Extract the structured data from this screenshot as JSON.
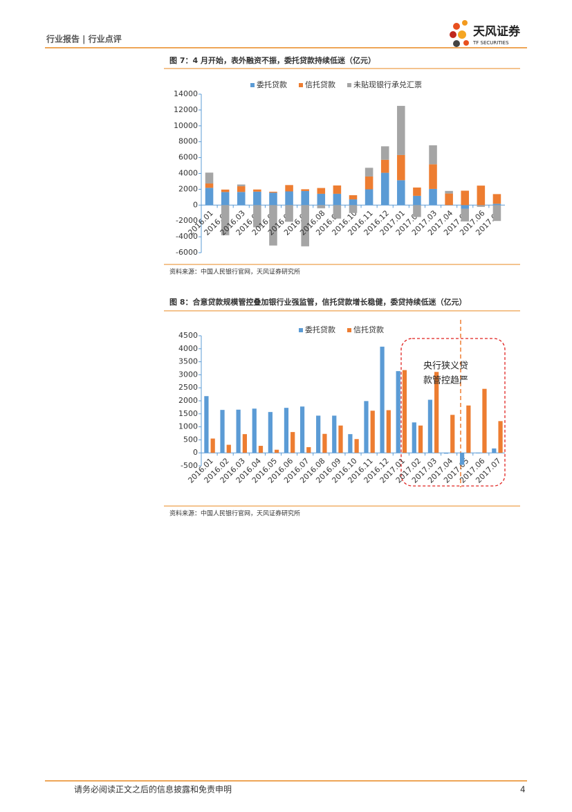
{
  "header": {
    "left": "行业报告 | 行业点评",
    "logo": "天风证券",
    "logo_sub": "TF SECURITIES"
  },
  "chart_data": [
    {
      "type": "bar",
      "stacked": true,
      "title": "图 7：4 月开始，表外融资不振，委托贷款持续低迷（亿元）",
      "source": "资料来源：中国人民银行官网，天风证券研究所",
      "categories": [
        "2016.01",
        "2016.02",
        "2016.03",
        "2016.04",
        "2016.05",
        "2016.06",
        "2016.07",
        "2016.08",
        "2016.09",
        "2016.10",
        "2016.11",
        "2016.12",
        "2017.01",
        "2017.02",
        "2017.03",
        "2017.04",
        "2017.05",
        "2017.06",
        "2017.07"
      ],
      "series": [
        {
          "name": "委托贷款",
          "color": "#5b9bd5",
          "values": [
            2180,
            1650,
            1660,
            1700,
            1570,
            1730,
            1780,
            1430,
            1430,
            720,
            1990,
            4080,
            3140,
            1170,
            2040,
            -30,
            -460,
            -20,
            170
          ]
        },
        {
          "name": "信托贷款",
          "color": "#ed7d31",
          "values": [
            550,
            310,
            720,
            270,
            120,
            800,
            220,
            730,
            1050,
            530,
            1620,
            1640,
            3180,
            1050,
            3110,
            1460,
            1820,
            2460,
            1220
          ]
        },
        {
          "name": "未贴现银行承兑汇票",
          "color": "#a5a5a5",
          "values": [
            1370,
            -3800,
            220,
            -2800,
            -5100,
            -2100,
            -5200,
            -400,
            -1700,
            -1000,
            1100,
            1700,
            6200,
            -1500,
            2400,
            330,
            -1600,
            -200,
            -2000
          ]
        }
      ],
      "ylim": [
        -6000,
        14000
      ],
      "yticks": [
        -6000,
        -4000,
        -2000,
        0,
        2000,
        4000,
        6000,
        8000,
        10000,
        12000,
        14000
      ],
      "grid": false
    },
    {
      "type": "bar",
      "stacked": false,
      "title": "图 8：合意贷款规模管控叠加银行业强监管，信托贷款增长稳健，委贷持续低迷（亿元）",
      "source": "资料来源：中国人民银行官网，天风证券研究所",
      "categories": [
        "2016.01",
        "2016.02",
        "2016.03",
        "2016.04",
        "2016.05",
        "2016.06",
        "2016.07",
        "2016.08",
        "2016.09",
        "2016.10",
        "2016.11",
        "2016.12",
        "2017.01",
        "2017.02",
        "2017.03",
        "2017.04",
        "2017.05",
        "2017.06",
        "2017.07"
      ],
      "series": [
        {
          "name": "委托贷款",
          "color": "#5b9bd5",
          "values": [
            2180,
            1650,
            1660,
            1700,
            1570,
            1730,
            1780,
            1430,
            1430,
            720,
            1990,
            4080,
            3140,
            1170,
            2040,
            -30,
            -460,
            -20,
            170
          ]
        },
        {
          "name": "信托贷款",
          "color": "#ed7d31",
          "values": [
            550,
            310,
            720,
            270,
            120,
            800,
            220,
            730,
            1050,
            530,
            1620,
            1640,
            3180,
            1050,
            3110,
            1460,
            1820,
            2460,
            1220
          ]
        }
      ],
      "ylim": [
        -500,
        4500
      ],
      "yticks": [
        -500,
        0,
        500,
        1000,
        1500,
        2000,
        2500,
        3000,
        3500,
        4000,
        4500
      ],
      "grid": false,
      "annotation": [
        "央行狭义贷",
        "款管控趋严"
      ]
    }
  ],
  "footer": {
    "text": "请务必阅读正文之后的信息披露和免责申明",
    "page": 4
  }
}
